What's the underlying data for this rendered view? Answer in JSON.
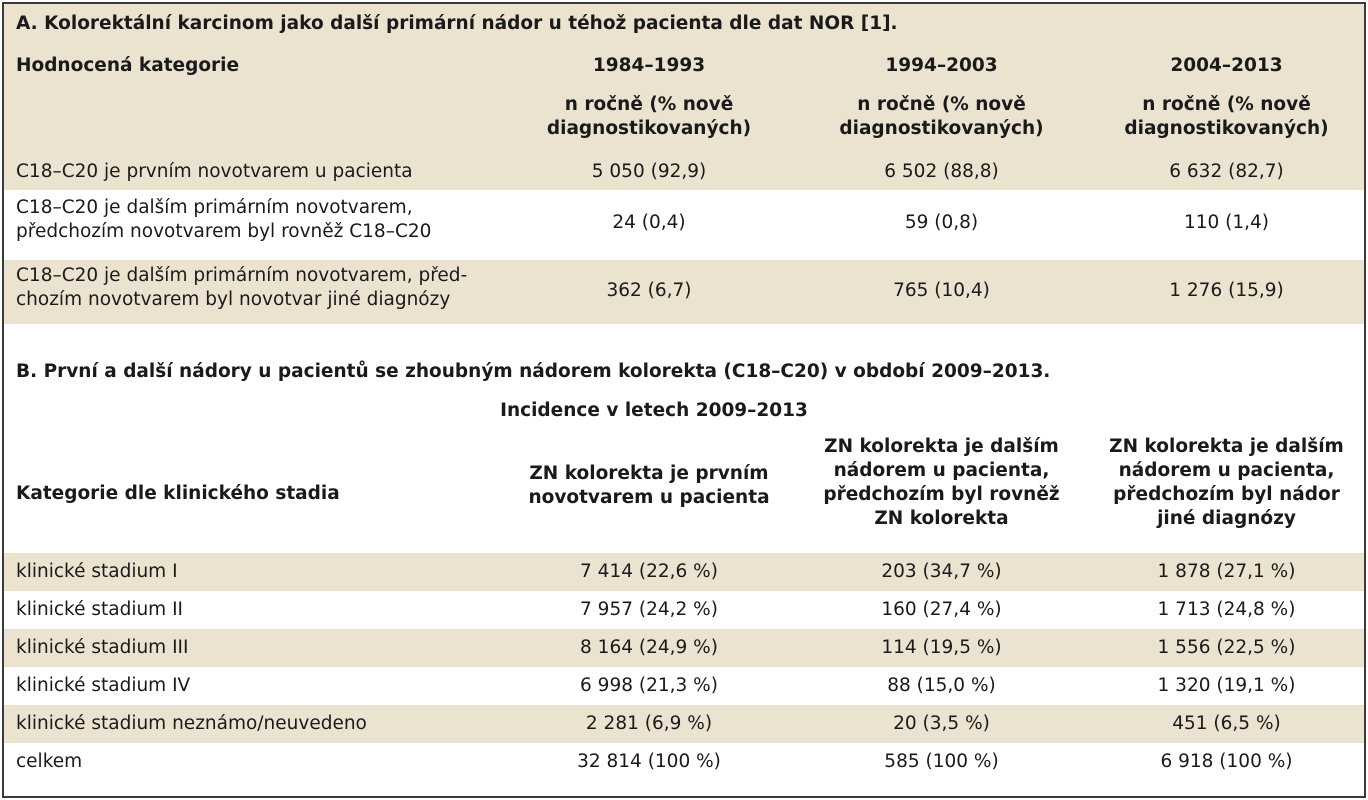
{
  "sectionA": {
    "title": "A. Kolorektální karcinom jako další primární nádor u téhož pacienta dle dat NOR [1].",
    "header": {
      "category_label": "Hodnocená kategorie",
      "periods": [
        "1984–1993",
        "1994–2003",
        "2004–2013"
      ],
      "sub_line1": "n ročně (% nově",
      "sub_line2": "diagnostikovaných)"
    },
    "rows": [
      {
        "label_line1": "C18–C20 je prvním novotvarem u pacienta",
        "label_line2": "",
        "values": [
          "5 050 (92,9)",
          "6 502 (88,8)",
          "6 632 (82,7)"
        ]
      },
      {
        "label_line1": "C18–C20 je dalším primárním novotvarem,",
        "label_line2": "předchozím novotvarem byl rovněž C18–C20",
        "values": [
          "24 (0,4)",
          "59 (0,8)",
          "110 (1,4)"
        ]
      },
      {
        "label_line1": "C18–C20 je dalším primárním novotvarem, před-",
        "label_line2": "chozím novotvarem byl novotvar jiné diagnózy",
        "values": [
          "362 (6,7)",
          "765 (10,4)",
          "1 276 (15,9)"
        ]
      }
    ]
  },
  "sectionB": {
    "title": "B. První a další nádory u pacientů se zhoubným nádorem kolorekta (C18–C20) v období 2009–2013.",
    "incidence_label": "Incidence v letech 2009–2013",
    "category_label": "Kategorie dle klinického stadia",
    "col1": [
      "ZN kolorekta je prvním",
      "novotvarem u pacienta"
    ],
    "col2": [
      "ZN kolorekta je dalším",
      "nádorem u pacienta,",
      "předchozím byl rovněž",
      "ZN kolorekta"
    ],
    "col3": [
      "ZN kolorekta je dalším",
      "nádorem u pacienta,",
      "předchozím byl nádor",
      "jiné diagnózy"
    ],
    "rows": [
      {
        "label": "klinické stadium I",
        "values": [
          "7 414 (22,6 %)",
          "203 (34,7 %)",
          "1 878 (27,1 %)"
        ]
      },
      {
        "label": "klinické stadium II",
        "values": [
          "7 957 (24,2 %)",
          "160 (27,4 %)",
          "1 713 (24,8 %)"
        ]
      },
      {
        "label": "klinické stadium III",
        "values": [
          "8 164 (24,9 %)",
          "114 (19,5 %)",
          "1 556 (22,5 %)"
        ]
      },
      {
        "label": "klinické stadium IV",
        "values": [
          "6 998 (21,3 %)",
          "88 (15,0 %)",
          "1 320 (19,1 %)"
        ]
      },
      {
        "label": "klinické stadium neznámo/neuvedeno",
        "values": [
          "2 281 (6,9 %)",
          "20 (3,5 %)",
          "451 (6,5 %)"
        ]
      },
      {
        "label": "celkem",
        "values": [
          "32 814 (100 %)",
          "585 (100 %)",
          "6 918 (100 %)"
        ]
      }
    ]
  }
}
